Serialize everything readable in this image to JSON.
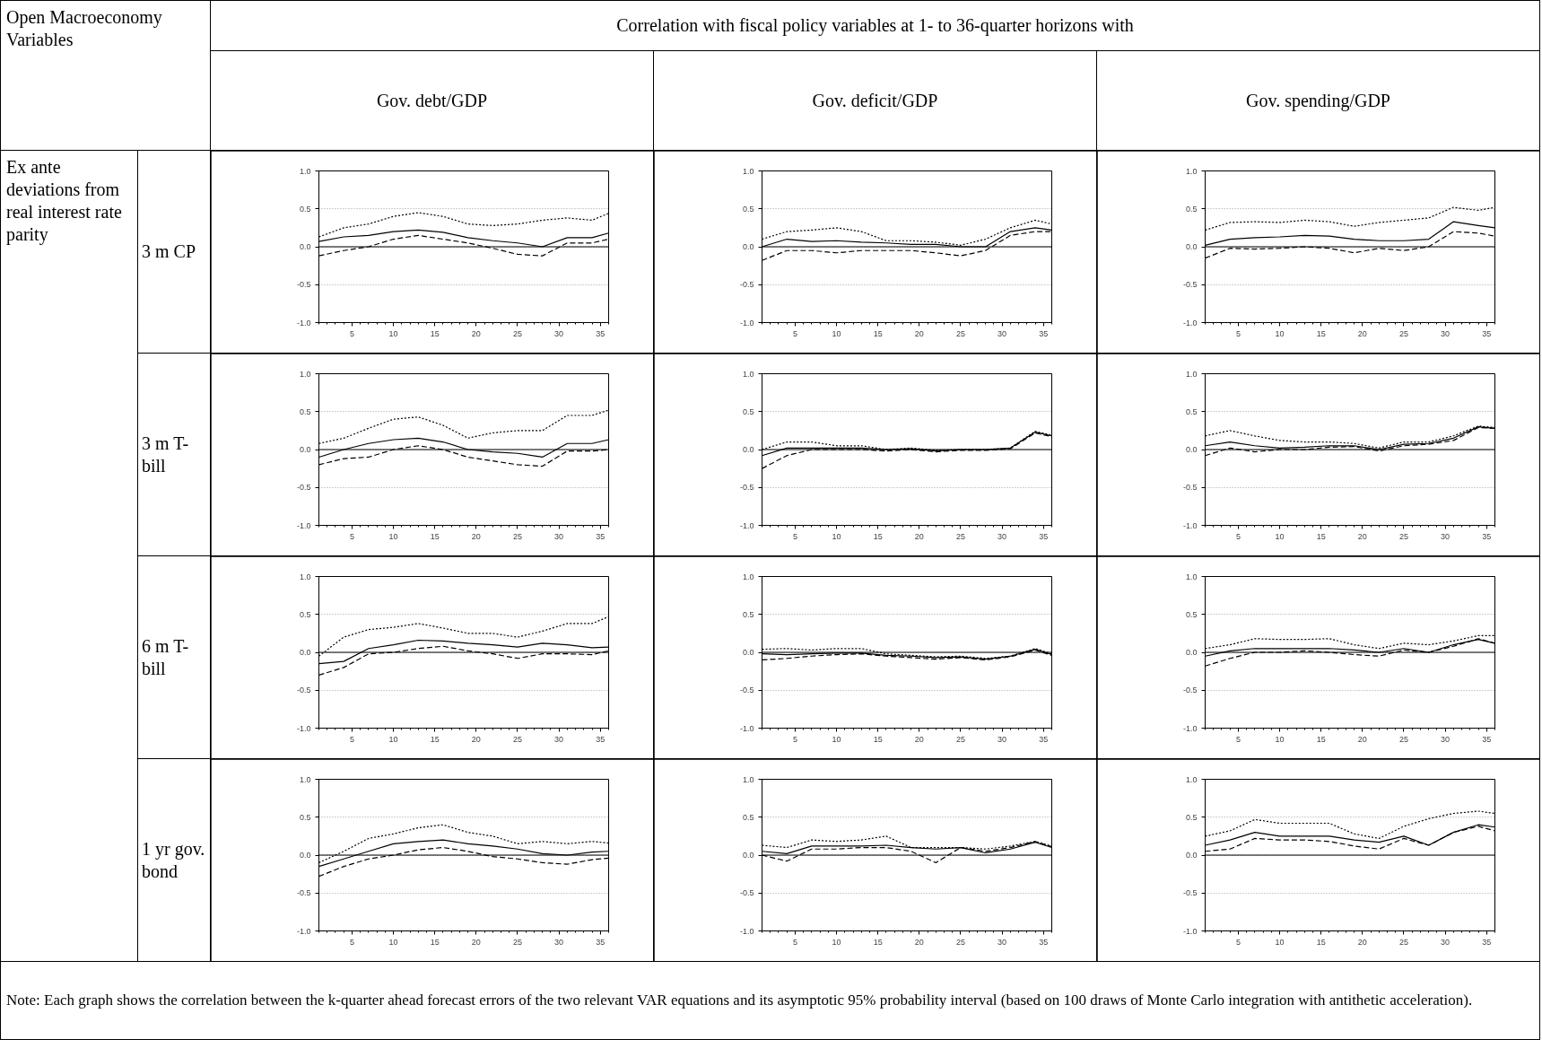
{
  "chart_data": [
    {
      "type": "other",
      "title": "Correlation with fiscal policy variables at 1- to 36-quarter horizons with",
      "annotations": [
        "Open Macroeconomy Variables",
        "Gov. debt/GDP",
        "Gov. deficit/GDP",
        "Gov. spending/GDP",
        "Ex ante deviations from real interest rate parity",
        "3 m CP",
        "3 m T-bill",
        "6 m T-bill",
        "1 yr gov. bond",
        "Note:  Each graph shows the correlation between the k-quarter ahead forecast errors of the two relevant VAR equations and its asymptotic 95% probability interval (based on 100 draws of Monte Carlo integration with antithetic acceleration)."
      ]
    },
    {
      "type": "line",
      "x": [
        1,
        4,
        7,
        10,
        13,
        16,
        19,
        22,
        25,
        28,
        31,
        34,
        36
      ],
      "xlim": [
        1,
        36
      ],
      "ylim": [
        -1,
        1
      ],
      "xticks": [
        5,
        10,
        15,
        20,
        25,
        30,
        35
      ],
      "yticks": [
        {
          "value": -1,
          "label": "-1.0"
        },
        {
          "value": -0.5,
          "label": "-0.5"
        },
        {
          "value": 0,
          "label": "0.0"
        },
        {
          "value": 0.5,
          "label": "0.5"
        },
        {
          "value": 1,
          "label": "1.0"
        }
      ],
      "grid": "y",
      "ref_lines": [
        {
          "axis": "y",
          "value": 0,
          "label": null
        }
      ],
      "series": [
        {
          "color": "#000000",
          "line_style": "dotted",
          "values": [
            0.13,
            0.25,
            0.3,
            0.4,
            0.45,
            0.4,
            0.3,
            0.28,
            0.3,
            0.35,
            0.38,
            0.35,
            0.44
          ]
        },
        {
          "color": "#000000",
          "line_style": "solid",
          "values": [
            0.07,
            0.13,
            0.15,
            0.2,
            0.22,
            0.19,
            0.12,
            0.08,
            0.05,
            0.0,
            0.12,
            0.12,
            0.18
          ]
        },
        {
          "color": "#000000",
          "line_style": "dashed",
          "values": [
            -0.12,
            -0.05,
            0.0,
            0.1,
            0.15,
            0.1,
            0.05,
            -0.02,
            -0.1,
            -0.12,
            0.05,
            0.05,
            0.1
          ]
        }
      ]
    },
    {
      "type": "line",
      "x": [
        1,
        4,
        7,
        10,
        13,
        16,
        19,
        22,
        25,
        28,
        31,
        34,
        36
      ],
      "xlim": [
        1,
        36
      ],
      "ylim": [
        -1,
        1
      ],
      "xticks": [
        5,
        10,
        15,
        20,
        25,
        30,
        35
      ],
      "yticks": [
        {
          "value": -1,
          "label": "-1.0"
        },
        {
          "value": -0.5,
          "label": "-0.5"
        },
        {
          "value": 0,
          "label": "0.0"
        },
        {
          "value": 0.5,
          "label": "0.5"
        },
        {
          "value": 1,
          "label": "1.0"
        }
      ],
      "grid": "y",
      "ref_lines": [
        {
          "axis": "y",
          "value": 0,
          "label": null
        }
      ],
      "series": [
        {
          "color": "#000000",
          "line_style": "dotted",
          "values": [
            0.1,
            0.2,
            0.22,
            0.25,
            0.2,
            0.08,
            0.08,
            0.06,
            0.02,
            0.1,
            0.25,
            0.35,
            0.3
          ]
        },
        {
          "color": "#000000",
          "line_style": "solid",
          "values": [
            0.0,
            0.1,
            0.07,
            0.08,
            0.06,
            0.05,
            0.03,
            0.03,
            0.0,
            0.0,
            0.2,
            0.25,
            0.22
          ]
        },
        {
          "color": "#000000",
          "line_style": "dashed",
          "values": [
            -0.18,
            -0.05,
            -0.05,
            -0.08,
            -0.05,
            -0.05,
            -0.05,
            -0.08,
            -0.12,
            -0.05,
            0.15,
            0.2,
            0.2
          ]
        }
      ]
    },
    {
      "type": "line",
      "x": [
        1,
        4,
        7,
        10,
        13,
        16,
        19,
        22,
        25,
        28,
        31,
        34,
        36
      ],
      "xlim": [
        1,
        36
      ],
      "ylim": [
        -1,
        1
      ],
      "xticks": [
        5,
        10,
        15,
        20,
        25,
        30,
        35
      ],
      "yticks": [
        {
          "value": -1,
          "label": "-1.0"
        },
        {
          "value": -0.5,
          "label": "-0.5"
        },
        {
          "value": 0,
          "label": "0.0"
        },
        {
          "value": 0.5,
          "label": "0.5"
        },
        {
          "value": 1,
          "label": "1.0"
        }
      ],
      "grid": "y",
      "ref_lines": [
        {
          "axis": "y",
          "value": 0,
          "label": null
        }
      ],
      "series": [
        {
          "color": "#000000",
          "line_style": "dotted",
          "values": [
            0.22,
            0.32,
            0.33,
            0.32,
            0.35,
            0.33,
            0.27,
            0.32,
            0.35,
            0.38,
            0.52,
            0.48,
            0.52
          ]
        },
        {
          "color": "#000000",
          "line_style": "solid",
          "values": [
            0.02,
            0.1,
            0.12,
            0.13,
            0.15,
            0.14,
            0.1,
            0.08,
            0.08,
            0.1,
            0.33,
            0.28,
            0.25
          ]
        },
        {
          "color": "#000000",
          "line_style": "dashed",
          "values": [
            -0.15,
            -0.02,
            -0.03,
            -0.02,
            0.0,
            -0.02,
            -0.08,
            -0.02,
            -0.05,
            0.0,
            0.2,
            0.18,
            0.14
          ]
        }
      ]
    },
    {
      "type": "line",
      "x": [
        1,
        4,
        7,
        10,
        13,
        16,
        19,
        22,
        25,
        28,
        31,
        34,
        36
      ],
      "xlim": [
        1,
        36
      ],
      "ylim": [
        -1,
        1
      ],
      "xticks": [
        5,
        10,
        15,
        20,
        25,
        30,
        35
      ],
      "yticks": [
        {
          "value": -1,
          "label": "-1.0"
        },
        {
          "value": -0.5,
          "label": "-0.5"
        },
        {
          "value": 0,
          "label": "0.0"
        },
        {
          "value": 0.5,
          "label": "0.5"
        },
        {
          "value": 1,
          "label": "1.0"
        }
      ],
      "grid": "y",
      "ref_lines": [
        {
          "axis": "y",
          "value": 0,
          "label": null
        }
      ],
      "series": [
        {
          "color": "#000000",
          "line_style": "dotted",
          "values": [
            0.08,
            0.15,
            0.28,
            0.4,
            0.43,
            0.32,
            0.15,
            0.22,
            0.25,
            0.25,
            0.45,
            0.45,
            0.52
          ]
        },
        {
          "color": "#000000",
          "line_style": "solid",
          "values": [
            -0.1,
            0.0,
            0.08,
            0.13,
            0.15,
            0.1,
            0.0,
            -0.03,
            -0.05,
            -0.1,
            0.08,
            0.08,
            0.13
          ]
        },
        {
          "color": "#000000",
          "line_style": "dashed",
          "values": [
            -0.2,
            -0.12,
            -0.1,
            0.0,
            0.05,
            0.0,
            -0.1,
            -0.15,
            -0.2,
            -0.22,
            -0.02,
            -0.02,
            0.0
          ]
        }
      ]
    },
    {
      "type": "line",
      "x": [
        1,
        4,
        7,
        10,
        13,
        16,
        19,
        22,
        25,
        28,
        31,
        34,
        36
      ],
      "xlim": [
        1,
        36
      ],
      "ylim": [
        -1,
        1
      ],
      "xticks": [
        5,
        10,
        15,
        20,
        25,
        30,
        35
      ],
      "yticks": [
        {
          "value": -1,
          "label": "-1.0"
        },
        {
          "value": -0.5,
          "label": "-0.5"
        },
        {
          "value": 0,
          "label": "0.0"
        },
        {
          "value": 0.5,
          "label": "0.5"
        },
        {
          "value": 1,
          "label": "1.0"
        }
      ],
      "grid": "y",
      "ref_lines": [
        {
          "axis": "y",
          "value": 0,
          "label": null
        }
      ],
      "series": [
        {
          "color": "#000000",
          "line_style": "dotted",
          "values": [
            0.0,
            0.1,
            0.1,
            0.05,
            0.05,
            0.0,
            0.02,
            -0.01,
            0.0,
            0.0,
            0.02,
            0.24,
            0.19
          ]
        },
        {
          "color": "#000000",
          "line_style": "solid",
          "values": [
            -0.08,
            0.02,
            0.02,
            0.02,
            0.02,
            0.0,
            0.01,
            -0.02,
            0.0,
            0.0,
            0.02,
            0.23,
            0.18
          ]
        },
        {
          "color": "#000000",
          "line_style": "dashed",
          "values": [
            -0.25,
            -0.08,
            0.0,
            0.0,
            0.0,
            -0.02,
            0.0,
            -0.03,
            -0.01,
            -0.01,
            0.01,
            0.22,
            0.17
          ]
        }
      ]
    },
    {
      "type": "line",
      "x": [
        1,
        4,
        7,
        10,
        13,
        16,
        19,
        22,
        25,
        28,
        31,
        34,
        36
      ],
      "xlim": [
        1,
        36
      ],
      "ylim": [
        -1,
        1
      ],
      "xticks": [
        5,
        10,
        15,
        20,
        25,
        30,
        35
      ],
      "yticks": [
        {
          "value": -1,
          "label": "-1.0"
        },
        {
          "value": -0.5,
          "label": "-0.5"
        },
        {
          "value": 0,
          "label": "0.0"
        },
        {
          "value": 0.5,
          "label": "0.5"
        },
        {
          "value": 1,
          "label": "1.0"
        }
      ],
      "grid": "y",
      "ref_lines": [
        {
          "axis": "y",
          "value": 0,
          "label": null
        }
      ],
      "series": [
        {
          "color": "#000000",
          "line_style": "dotted",
          "values": [
            0.18,
            0.25,
            0.18,
            0.12,
            0.1,
            0.1,
            0.08,
            0.02,
            0.1,
            0.1,
            0.18,
            0.31,
            0.29
          ]
        },
        {
          "color": "#000000",
          "line_style": "solid",
          "values": [
            0.05,
            0.1,
            0.05,
            0.02,
            0.03,
            0.05,
            0.05,
            0.0,
            0.07,
            0.08,
            0.15,
            0.3,
            0.28
          ]
        },
        {
          "color": "#000000",
          "line_style": "dashed",
          "values": [
            -0.08,
            0.02,
            -0.03,
            0.0,
            0.0,
            0.03,
            0.04,
            -0.02,
            0.05,
            0.07,
            0.12,
            0.29,
            0.28
          ]
        }
      ]
    },
    {
      "type": "line",
      "x": [
        1,
        4,
        7,
        10,
        13,
        16,
        19,
        22,
        25,
        28,
        31,
        34,
        36
      ],
      "xlim": [
        1,
        36
      ],
      "ylim": [
        -1,
        1
      ],
      "xticks": [
        5,
        10,
        15,
        20,
        25,
        30,
        35
      ],
      "yticks": [
        {
          "value": -1,
          "label": "-1.0"
        },
        {
          "value": -0.5,
          "label": "-0.5"
        },
        {
          "value": 0,
          "label": "0.0"
        },
        {
          "value": 0.5,
          "label": "0.5"
        },
        {
          "value": 1,
          "label": "1.0"
        }
      ],
      "grid": "y",
      "ref_lines": [
        {
          "axis": "y",
          "value": 0,
          "label": null
        }
      ],
      "series": [
        {
          "color": "#000000",
          "line_style": "dotted",
          "values": [
            -0.05,
            0.2,
            0.3,
            0.33,
            0.38,
            0.32,
            0.25,
            0.25,
            0.2,
            0.28,
            0.38,
            0.38,
            0.47
          ]
        },
        {
          "color": "#000000",
          "line_style": "solid",
          "values": [
            -0.15,
            -0.12,
            0.05,
            0.1,
            0.16,
            0.15,
            0.12,
            0.1,
            0.07,
            0.12,
            0.1,
            0.06,
            0.07
          ]
        },
        {
          "color": "#000000",
          "line_style": "dashed",
          "values": [
            -0.3,
            -0.2,
            -0.02,
            0.0,
            0.05,
            0.08,
            0.02,
            -0.02,
            -0.08,
            -0.02,
            -0.02,
            -0.03,
            0.02
          ]
        }
      ]
    },
    {
      "type": "line",
      "x": [
        1,
        4,
        7,
        10,
        13,
        16,
        19,
        22,
        25,
        28,
        31,
        34,
        36
      ],
      "xlim": [
        1,
        36
      ],
      "ylim": [
        -1,
        1
      ],
      "xticks": [
        5,
        10,
        15,
        20,
        25,
        30,
        35
      ],
      "yticks": [
        {
          "value": -1,
          "label": "-1.0"
        },
        {
          "value": -0.5,
          "label": "-0.5"
        },
        {
          "value": 0,
          "label": "0.0"
        },
        {
          "value": 0.5,
          "label": "0.5"
        },
        {
          "value": 1,
          "label": "1.0"
        }
      ],
      "grid": "y",
      "ref_lines": [
        {
          "axis": "y",
          "value": 0,
          "label": null
        }
      ],
      "series": [
        {
          "color": "#000000",
          "line_style": "dotted",
          "values": [
            0.04,
            0.05,
            0.03,
            0.05,
            0.05,
            -0.02,
            -0.04,
            -0.06,
            -0.05,
            -0.08,
            -0.05,
            0.05,
            -0.02
          ]
        },
        {
          "color": "#000000",
          "line_style": "solid",
          "values": [
            -0.02,
            -0.03,
            -0.02,
            -0.01,
            -0.01,
            -0.04,
            -0.05,
            -0.07,
            -0.06,
            -0.09,
            -0.05,
            0.04,
            -0.03
          ]
        },
        {
          "color": "#000000",
          "line_style": "dashed",
          "values": [
            -0.1,
            -0.08,
            -0.05,
            -0.03,
            -0.02,
            -0.05,
            -0.07,
            -0.09,
            -0.07,
            -0.1,
            -0.06,
            0.03,
            -0.04
          ]
        }
      ]
    },
    {
      "type": "line",
      "x": [
        1,
        4,
        7,
        10,
        13,
        16,
        19,
        22,
        25,
        28,
        31,
        34,
        36
      ],
      "xlim": [
        1,
        36
      ],
      "ylim": [
        -1,
        1
      ],
      "xticks": [
        5,
        10,
        15,
        20,
        25,
        30,
        35
      ],
      "yticks": [
        {
          "value": -1,
          "label": "-1.0"
        },
        {
          "value": -0.5,
          "label": "-0.5"
        },
        {
          "value": 0,
          "label": "0.0"
        },
        {
          "value": 0.5,
          "label": "0.5"
        },
        {
          "value": 1,
          "label": "1.0"
        }
      ],
      "grid": "y",
      "ref_lines": [
        {
          "axis": "y",
          "value": 0,
          "label": null
        }
      ],
      "series": [
        {
          "color": "#000000",
          "line_style": "dotted",
          "values": [
            0.05,
            0.1,
            0.18,
            0.17,
            0.17,
            0.18,
            0.1,
            0.05,
            0.12,
            0.1,
            0.15,
            0.22,
            0.22
          ]
        },
        {
          "color": "#000000",
          "line_style": "solid",
          "values": [
            -0.05,
            0.02,
            0.05,
            0.05,
            0.05,
            0.05,
            0.03,
            0.0,
            0.05,
            0.0,
            0.1,
            0.17,
            0.12
          ]
        },
        {
          "color": "#000000",
          "line_style": "dashed",
          "values": [
            -0.18,
            -0.08,
            0.0,
            0.0,
            0.02,
            0.0,
            -0.03,
            -0.05,
            0.03,
            0.0,
            0.08,
            0.18,
            0.12
          ]
        }
      ]
    },
    {
      "type": "line",
      "x": [
        1,
        4,
        7,
        10,
        13,
        16,
        19,
        22,
        25,
        28,
        31,
        34,
        36
      ],
      "xlim": [
        1,
        36
      ],
      "ylim": [
        -1,
        1
      ],
      "xticks": [
        5,
        10,
        15,
        20,
        25,
        30,
        35
      ],
      "yticks": [
        {
          "value": -1,
          "label": "-1.0"
        },
        {
          "value": -0.5,
          "label": "-0.5"
        },
        {
          "value": 0,
          "label": "0.0"
        },
        {
          "value": 0.5,
          "label": "0.5"
        },
        {
          "value": 1,
          "label": "1.0"
        }
      ],
      "grid": "y",
      "ref_lines": [
        {
          "axis": "y",
          "value": 0,
          "label": null
        }
      ],
      "series": [
        {
          "color": "#000000",
          "line_style": "dotted",
          "values": [
            -0.1,
            0.05,
            0.22,
            0.28,
            0.36,
            0.4,
            0.3,
            0.25,
            0.15,
            0.18,
            0.15,
            0.18,
            0.16
          ]
        },
        {
          "color": "#000000",
          "line_style": "solid",
          "values": [
            -0.15,
            -0.05,
            0.05,
            0.15,
            0.18,
            0.2,
            0.15,
            0.12,
            0.08,
            0.02,
            0.0,
            0.04,
            0.05
          ]
        },
        {
          "color": "#000000",
          "line_style": "dashed",
          "values": [
            -0.28,
            -0.15,
            -0.05,
            0.0,
            0.07,
            0.1,
            0.05,
            -0.02,
            -0.05,
            -0.1,
            -0.12,
            -0.06,
            -0.04
          ]
        }
      ]
    },
    {
      "type": "line",
      "x": [
        1,
        4,
        7,
        10,
        13,
        16,
        19,
        22,
        25,
        28,
        31,
        34,
        36
      ],
      "xlim": [
        1,
        36
      ],
      "ylim": [
        -1,
        1
      ],
      "xticks": [
        5,
        10,
        15,
        20,
        25,
        30,
        35
      ],
      "yticks": [
        {
          "value": -1,
          "label": "-1.0"
        },
        {
          "value": -0.5,
          "label": "-0.5"
        },
        {
          "value": 0,
          "label": "0.0"
        },
        {
          "value": 0.5,
          "label": "0.5"
        },
        {
          "value": 1,
          "label": "1.0"
        }
      ],
      "grid": "y",
      "ref_lines": [
        {
          "axis": "y",
          "value": 0,
          "label": null
        }
      ],
      "series": [
        {
          "color": "#000000",
          "line_style": "dotted",
          "values": [
            0.13,
            0.1,
            0.2,
            0.18,
            0.2,
            0.25,
            0.1,
            0.1,
            0.1,
            0.08,
            0.12,
            0.18,
            0.12
          ]
        },
        {
          "color": "#000000",
          "line_style": "solid",
          "values": [
            0.05,
            0.02,
            0.12,
            0.12,
            0.12,
            0.13,
            0.1,
            0.08,
            0.1,
            0.03,
            0.08,
            0.17,
            0.1
          ]
        },
        {
          "color": "#000000",
          "line_style": "dashed",
          "values": [
            0.0,
            -0.08,
            0.08,
            0.08,
            0.1,
            0.1,
            0.05,
            -0.1,
            0.1,
            0.05,
            0.1,
            0.18,
            0.11
          ]
        }
      ]
    },
    {
      "type": "line",
      "x": [
        1,
        4,
        7,
        10,
        13,
        16,
        19,
        22,
        25,
        28,
        31,
        34,
        36
      ],
      "xlim": [
        1,
        36
      ],
      "ylim": [
        -1,
        1
      ],
      "xticks": [
        5,
        10,
        15,
        20,
        25,
        30,
        35
      ],
      "yticks": [
        {
          "value": -1,
          "label": "-1.0"
        },
        {
          "value": -0.5,
          "label": "-0.5"
        },
        {
          "value": 0,
          "label": "0.0"
        },
        {
          "value": 0.5,
          "label": "0.5"
        },
        {
          "value": 1,
          "label": "1.0"
        }
      ],
      "grid": "y",
      "ref_lines": [
        {
          "axis": "y",
          "value": 0,
          "label": null
        }
      ],
      "series": [
        {
          "color": "#000000",
          "line_style": "dotted",
          "values": [
            0.25,
            0.32,
            0.47,
            0.42,
            0.42,
            0.42,
            0.28,
            0.22,
            0.38,
            0.48,
            0.55,
            0.58,
            0.55
          ]
        },
        {
          "color": "#000000",
          "line_style": "solid",
          "values": [
            0.13,
            0.2,
            0.3,
            0.25,
            0.25,
            0.25,
            0.2,
            0.17,
            0.25,
            0.13,
            0.3,
            0.4,
            0.37
          ]
        },
        {
          "color": "#000000",
          "line_style": "dashed",
          "values": [
            0.05,
            0.08,
            0.22,
            0.2,
            0.2,
            0.18,
            0.12,
            0.08,
            0.22,
            0.13,
            0.3,
            0.38,
            0.32
          ]
        }
      ]
    }
  ]
}
